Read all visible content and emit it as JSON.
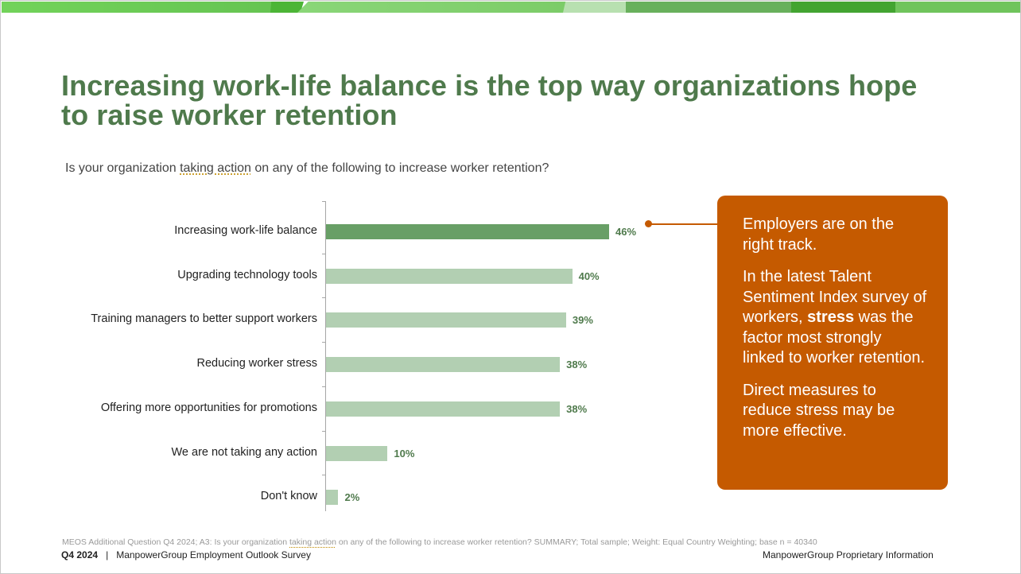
{
  "slide": {
    "title": "Increasing work-life balance is the top way organizations hope to raise worker retention",
    "subtitle_parts": {
      "before": "Is your organization ",
      "underlined": "taking action",
      "after": " on any of the following to increase worker retention?"
    }
  },
  "colors": {
    "title_green": "#4f7a4c",
    "bar_highlight": "#689f66",
    "bar_default": "#b2cfb2",
    "callout_orange": "#c55a00",
    "top_band": [
      "#6fcf57",
      "#4cb536",
      "#86d274",
      "#b8e0b0",
      "#66b05a",
      "#42a430",
      "#70c45c"
    ]
  },
  "chart_data": {
    "type": "bar",
    "orientation": "horizontal",
    "title": "Is your organization taking action on any of the following to increase worker retention?",
    "xlabel": "",
    "ylabel": "",
    "categories": [
      "Increasing work-life balance",
      "Upgrading technology tools",
      "Training managers to better support workers",
      "Reducing worker stress",
      "Offering more opportunities for promotions",
      "We are not taking any action",
      "Don't know"
    ],
    "values": [
      46,
      40,
      39,
      38,
      38,
      10,
      2
    ],
    "value_labels": [
      "46%",
      "40%",
      "39%",
      "38%",
      "38%",
      "10%",
      "2%"
    ],
    "highlighted_index": 0,
    "unit": "%",
    "xlim": [
      0,
      50
    ],
    "grid": false,
    "legend": "none"
  },
  "callout": {
    "p1": "Employers are on the right track.",
    "p2_before": "In the latest Talent Sentiment Index survey of workers, ",
    "p2_bold": "stress",
    "p2_after": " was the factor most strongly linked to worker retention.",
    "p3": "Direct measures to reduce stress may be more effective."
  },
  "footer": {
    "source_before": "MEOS Additional Question Q4 2024; A3: Is your organization ",
    "source_underlined": "taking action",
    "source_after": " on any of the following to increase worker retention? SUMMARY; Total sample; Weight: Equal Country Weighting; base n = 40340",
    "period": "Q4 2024",
    "separator": "|",
    "survey_name": "ManpowerGroup Employment Outlook Survey",
    "proprietary": "ManpowerGroup Proprietary Information"
  }
}
